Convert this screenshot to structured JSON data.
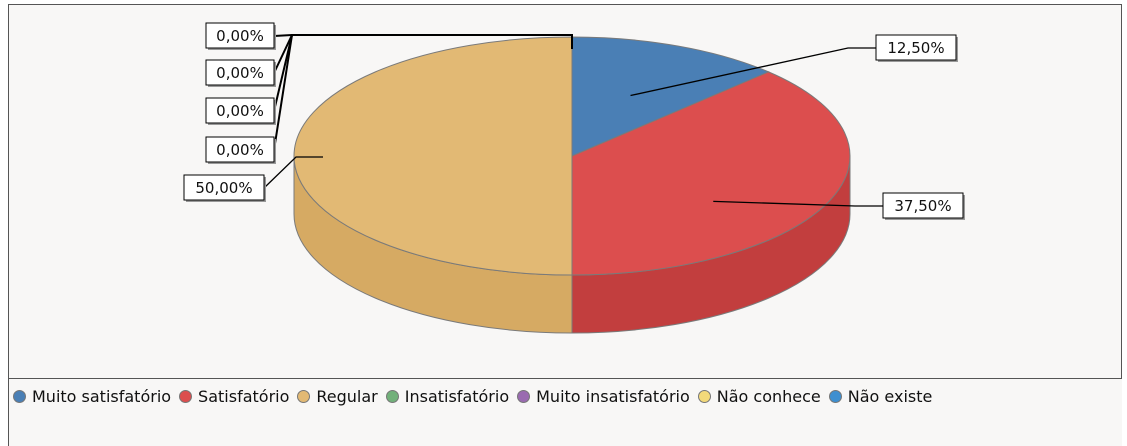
{
  "chart_data": {
    "type": "pie",
    "three_d": true,
    "series": [
      {
        "name": "Muito satisfatório",
        "value": 12.5,
        "label": "12,50%",
        "color": "#4a7fb5",
        "side_color": "#3d6a99"
      },
      {
        "name": "Satisfatório",
        "value": 37.5,
        "label": "37,50%",
        "color": "#dc4e4e",
        "side_color": "#c23e3e"
      },
      {
        "name": "Regular",
        "value": 50.0,
        "label": "50,00%",
        "color": "#e2b974",
        "side_color": "#d6aa63"
      },
      {
        "name": "Insatisfatório",
        "value": 0,
        "label": "0,00%",
        "color": "#72b07a",
        "side_color": "#5f9a67"
      },
      {
        "name": "Muito insatisfatório",
        "value": 0,
        "label": "0,00%",
        "color": "#9a6bb0",
        "side_color": "#825a96"
      },
      {
        "name": "Não conhece",
        "value": 0,
        "label": "0,00%",
        "color": "#f3d97a",
        "side_color": "#dcc267"
      },
      {
        "name": "Não existe",
        "value": 0,
        "label": "0,00%",
        "color": "#3e8fd0",
        "side_color": "#3279b3"
      }
    ],
    "legend_position": "bottom",
    "background": "#f8f7f6"
  }
}
